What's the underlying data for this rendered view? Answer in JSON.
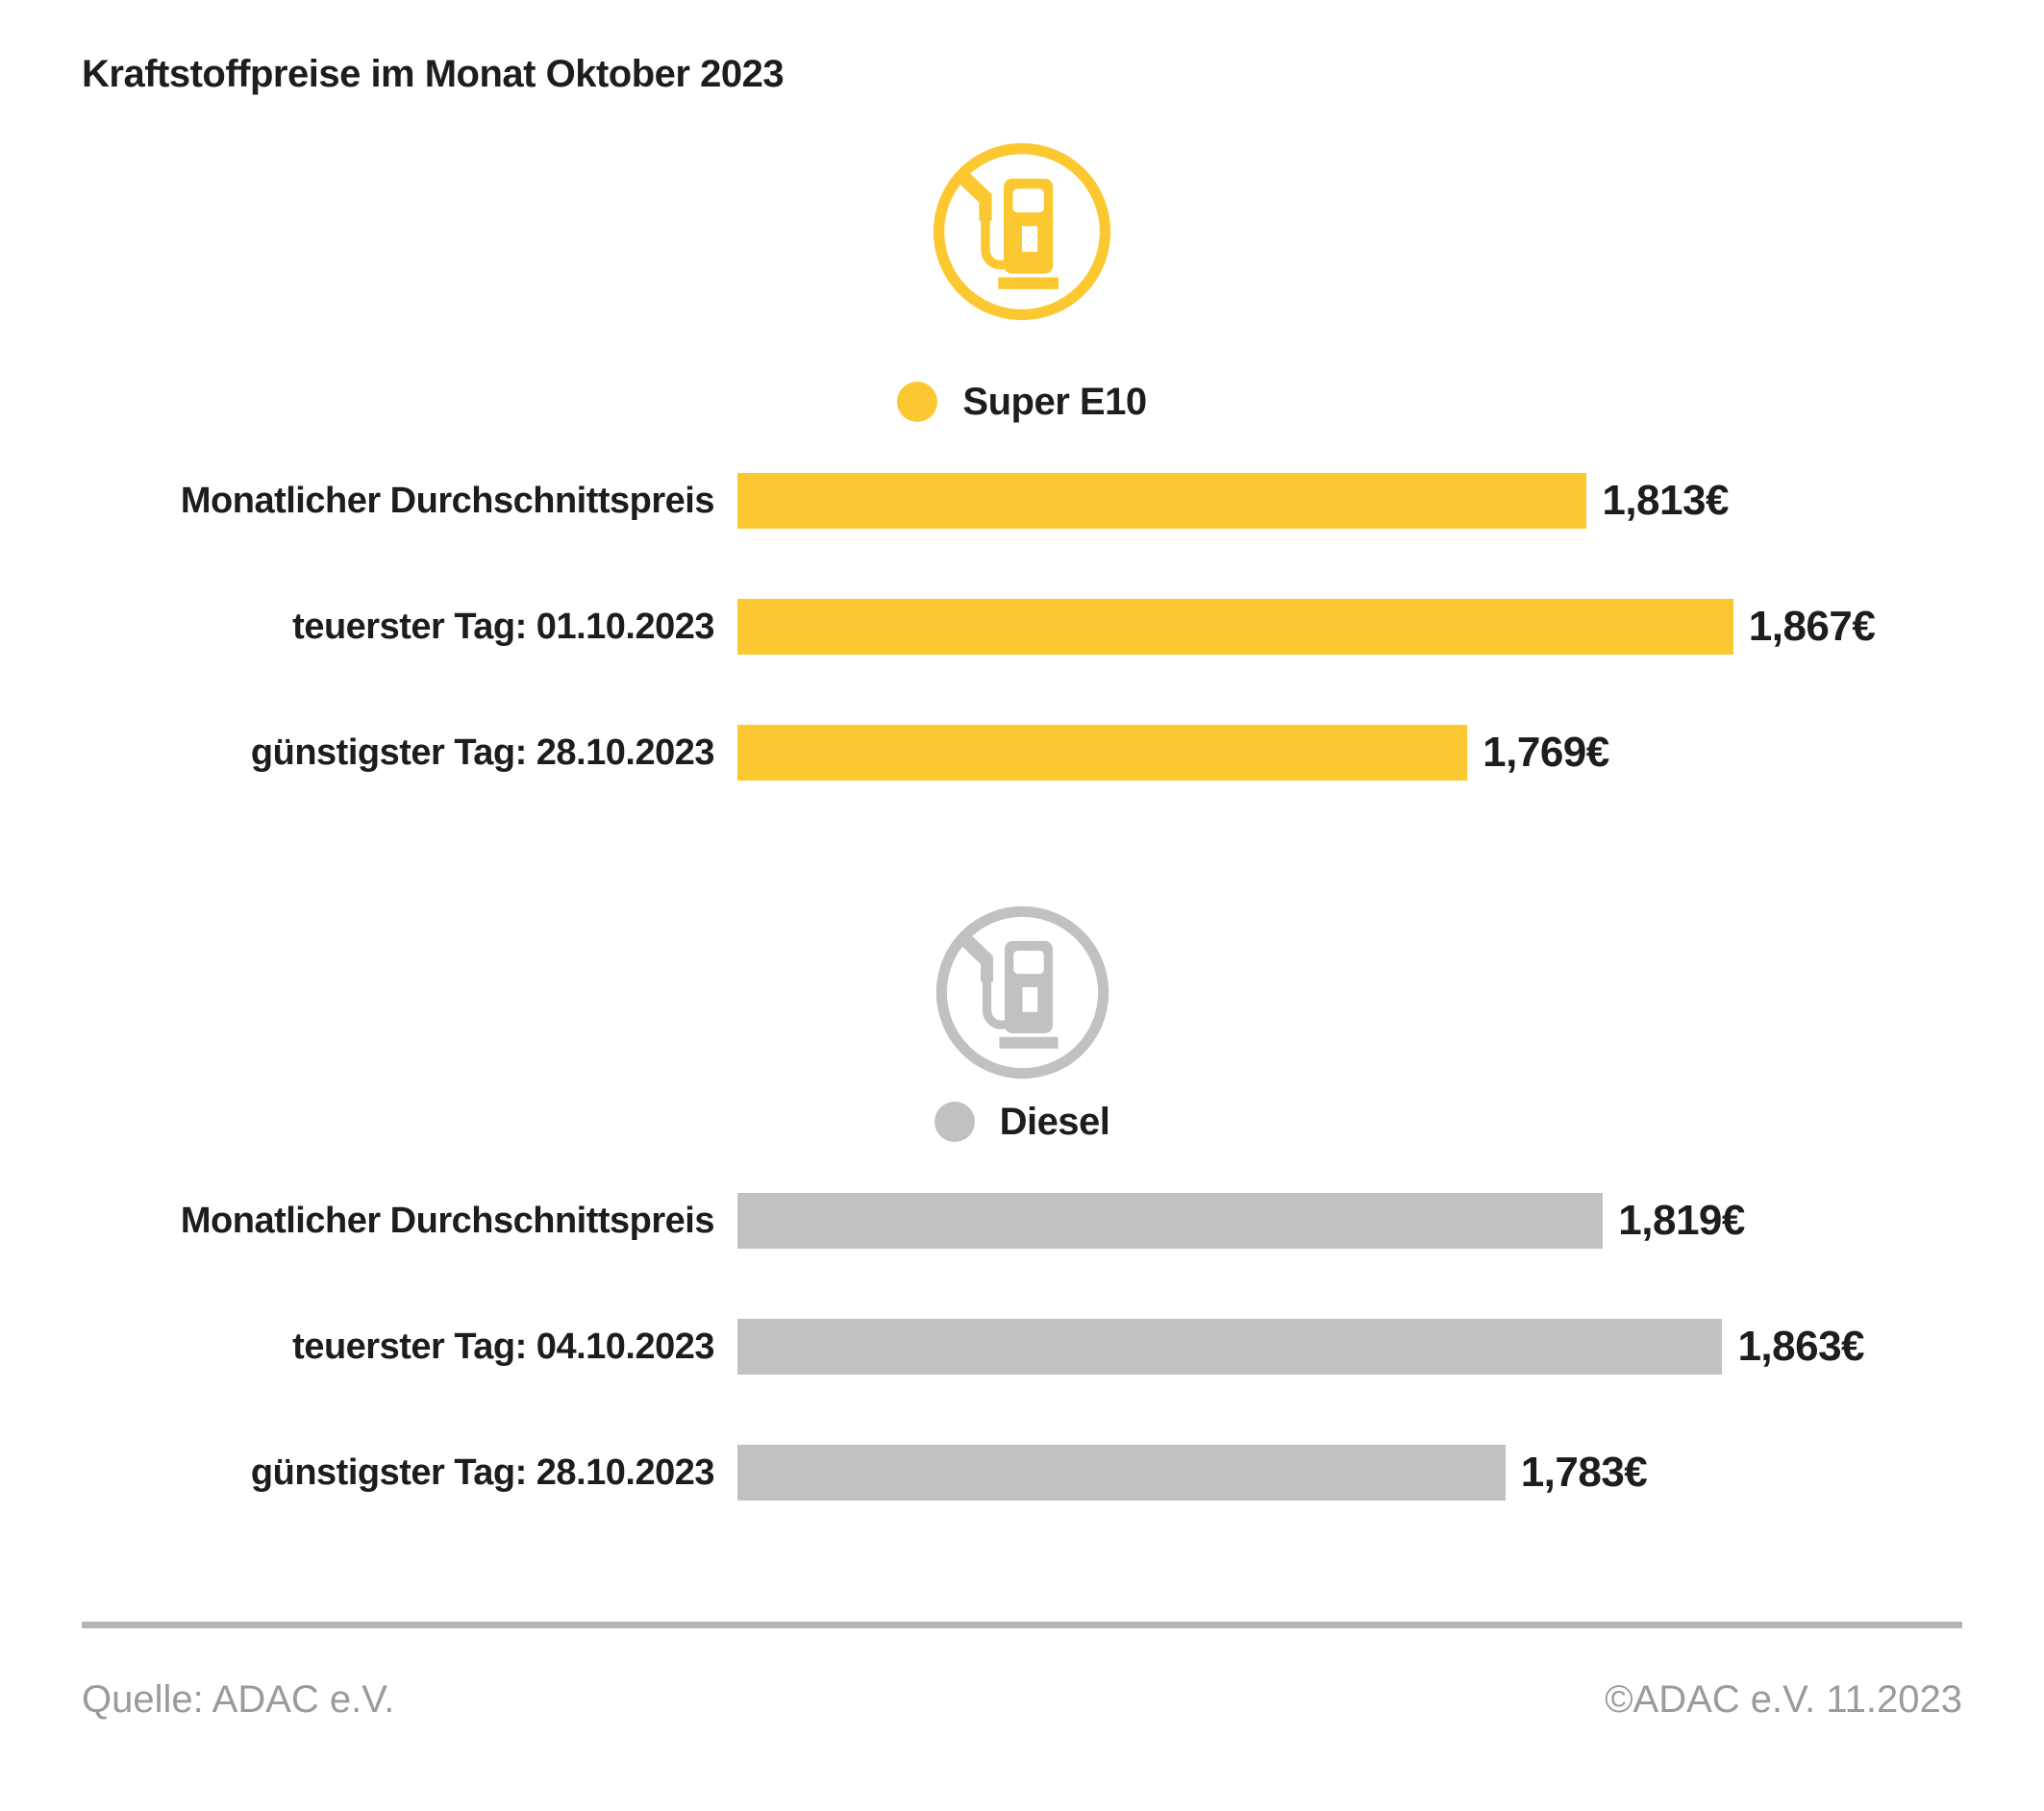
{
  "header": {
    "title": "Kraftstoffpreise im Monat Oktober 2023"
  },
  "footer": {
    "source": "Quelle: ADAC e.V.",
    "copyright": "©ADAC e.V. 11.2023"
  },
  "colors": {
    "super_e10_yellow": "#FCC832",
    "diesel_gray": "#C1C1C1",
    "text_dark": "#1d1d1b",
    "footer_gray": "#9b9b9b",
    "rule_gray": "#b5b5b5"
  },
  "chart_data": {
    "type": "bar",
    "orientation": "horizontal",
    "title": "Kraftstoffpreise im Monat Oktober 2023",
    "xlabel": "",
    "ylabel": "",
    "xlim": [
      1.5,
      1.95
    ],
    "grid": false,
    "legend_position": "centered above each series with fuel-pump icon",
    "series": [
      {
        "name": "Super E10",
        "color": "#FCC832",
        "icon": "fuel-pump-icon",
        "rows": [
          {
            "label": "Monatlicher Durchschnittspreis",
            "value": 1.813,
            "value_label": "1,813€"
          },
          {
            "label": "teuerster Tag: 01.10.2023",
            "value": 1.867,
            "value_label": "1,867€"
          },
          {
            "label": "günstigster Tag: 28.10.2023",
            "value": 1.769,
            "value_label": "1,769€"
          }
        ]
      },
      {
        "name": "Diesel",
        "color": "#C1C1C1",
        "icon": "fuel-pump-icon",
        "rows": [
          {
            "label": "Monatlicher Durchschnittspreis",
            "value": 1.819,
            "value_label": "1,819€"
          },
          {
            "label": "teuerster Tag: 04.10.2023",
            "value": 1.863,
            "value_label": "1,863€"
          },
          {
            "label": "günstigster Tag: 28.10.2023",
            "value": 1.783,
            "value_label": "1,783€"
          }
        ]
      }
    ]
  }
}
